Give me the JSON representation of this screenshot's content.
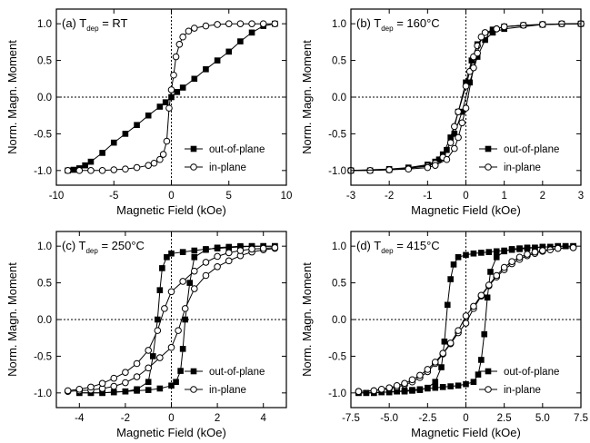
{
  "chart_data": [
    {
      "type": "scatter",
      "title": "(a) T_dep = RT",
      "title_parts": {
        "prefix": "(a) T",
        "sub": "dep",
        "suffix": " = RT"
      },
      "xlabel": "Magnetic Field (kOe)",
      "ylabel": "Norm. Magn. Moment",
      "xlim": [
        -10,
        10
      ],
      "ylim": [
        -1.2,
        1.2
      ],
      "xticks": [
        -10,
        -5,
        0,
        5,
        10
      ],
      "xticklabels": [
        "-10",
        "-5",
        "0",
        "5",
        "10"
      ],
      "yticks": [
        -1.0,
        -0.5,
        0.0,
        0.5,
        1.0
      ],
      "yticklabels": [
        "-1.0",
        "-0.5",
        "0.0",
        "0.5",
        "1.0"
      ],
      "legend_position": "bottom-right",
      "series": [
        {
          "name": "out-of-plane",
          "marker": "filled-square",
          "branches": [
            {
              "x": [
                -9,
                -8.5,
                -8,
                -7.5,
                -7,
                -6,
                -5,
                -4,
                -3,
                -2,
                -1,
                -0.5,
                0,
                0.5,
                1,
                2,
                3,
                4,
                5,
                6,
                7,
                8,
                9
              ],
              "y": [
                -1.0,
                -0.99,
                -0.97,
                -0.93,
                -0.88,
                -0.76,
                -0.62,
                -0.5,
                -0.38,
                -0.25,
                -0.13,
                -0.07,
                0.0,
                0.07,
                0.13,
                0.25,
                0.38,
                0.5,
                0.62,
                0.76,
                0.88,
                0.97,
                1.0
              ]
            }
          ]
        },
        {
          "name": "in-plane",
          "marker": "open-circle",
          "branches": [
            {
              "x": [
                -9,
                -8,
                -7,
                -6,
                -5,
                -4,
                -3,
                -2,
                -1.5,
                -1,
                -0.7,
                -0.4,
                -0.2,
                0,
                0.2,
                0.4,
                0.7,
                1,
                1.5,
                2,
                3,
                4,
                5,
                6,
                7,
                8,
                9
              ],
              "y": [
                -1.0,
                -1.0,
                -1.0,
                -1.0,
                -0.99,
                -0.98,
                -0.96,
                -0.93,
                -0.9,
                -0.85,
                -0.78,
                -0.6,
                -0.15,
                0.1,
                0.3,
                0.55,
                0.72,
                0.82,
                0.9,
                0.94,
                0.97,
                0.99,
                1.0,
                1.0,
                1.0,
                1.0,
                1.0
              ]
            }
          ]
        }
      ]
    },
    {
      "type": "scatter",
      "title": "(b) T_dep = 160°C",
      "title_parts": {
        "prefix": "(b) T",
        "sub": "dep",
        "suffix": " = 160°C"
      },
      "xlabel": "Magnetic Field (kOe)",
      "ylabel": "Norm. Magn. Moment",
      "xlim": [
        -3,
        3
      ],
      "ylim": [
        -1.2,
        1.2
      ],
      "xticks": [
        -3,
        -2,
        -1,
        0,
        1,
        2,
        3
      ],
      "xticklabels": [
        "-3",
        "-2",
        "-1",
        "0",
        "1",
        "2",
        "3"
      ],
      "yticks": [
        -1.0,
        -0.5,
        0.0,
        0.5,
        1.0
      ],
      "yticklabels": [
        "-1.0",
        "-0.5",
        "0.0",
        "0.5",
        "1.0"
      ],
      "legend_position": "bottom-right",
      "series": [
        {
          "name": "out-of-plane",
          "marker": "filled-square",
          "branches": [
            {
              "x": [
                -3,
                -2.5,
                -2,
                -1.5,
                -1,
                -0.8,
                -0.6,
                -0.4,
                -0.2,
                0,
                0.15,
                0.3,
                0.5,
                0.7,
                1,
                1.5,
                2,
                2.5,
                3
              ],
              "y": [
                -1.0,
                -1.0,
                -0.99,
                -0.97,
                -0.93,
                -0.88,
                -0.78,
                -0.55,
                -0.2,
                0.2,
                0.5,
                0.72,
                0.85,
                0.92,
                0.96,
                0.98,
                0.99,
                1.0,
                1.0
              ]
            },
            {
              "x": [
                3,
                2,
                1,
                0.7,
                0.5,
                0.3,
                0.1,
                -0.1,
                -0.3,
                -0.5,
                -0.7,
                -1,
                -1.5,
                -2,
                -3
              ],
              "y": [
                1.0,
                0.99,
                0.93,
                0.88,
                0.78,
                0.55,
                0.2,
                -0.2,
                -0.5,
                -0.72,
                -0.85,
                -0.92,
                -0.96,
                -0.98,
                -1.0
              ]
            }
          ]
        },
        {
          "name": "in-plane",
          "marker": "open-circle",
          "branches": [
            {
              "x": [
                -3,
                -2.5,
                -2,
                -1.5,
                -1,
                -0.8,
                -0.6,
                -0.4,
                -0.3,
                -0.2,
                0,
                0.1,
                0.2,
                0.3,
                0.5,
                0.8,
                1,
                1.5,
                2,
                2.5,
                3
              ],
              "y": [
                -1.0,
                -1.0,
                -0.99,
                -0.97,
                -0.94,
                -0.9,
                -0.82,
                -0.62,
                -0.4,
                -0.2,
                0.15,
                0.35,
                0.55,
                0.7,
                0.85,
                0.93,
                0.96,
                0.98,
                0.99,
                1.0,
                1.0
              ]
            },
            {
              "x": [
                3,
                2,
                1,
                0.8,
                0.5,
                0.4,
                0.3,
                0.2,
                0,
                -0.1,
                -0.2,
                -0.3,
                -0.5,
                -0.8,
                -1,
                -1.5,
                -2,
                -3
              ],
              "y": [
                1.0,
                0.99,
                0.96,
                0.93,
                0.88,
                0.82,
                0.6,
                0.4,
                -0.15,
                -0.35,
                -0.55,
                -0.7,
                -0.85,
                -0.93,
                -0.96,
                -0.98,
                -0.99,
                -1.0
              ]
            }
          ]
        }
      ]
    },
    {
      "type": "scatter",
      "title": "(c) T_dep = 250°C",
      "title_parts": {
        "prefix": "(c) T",
        "sub": "dep",
        "suffix": " = 250°C"
      },
      "xlabel": "Magnetic Field (kOe)",
      "ylabel": "Norm. Magn. Moment",
      "xlim": [
        -5,
        5
      ],
      "ylim": [
        -1.2,
        1.2
      ],
      "xticks": [
        -4,
        -2,
        0,
        2,
        4
      ],
      "xticklabels": [
        "-4",
        "-2",
        "0",
        "2",
        "4"
      ],
      "yticks": [
        -1.0,
        -0.5,
        0.0,
        0.5,
        1.0
      ],
      "yticklabels": [
        "-1.0",
        "-0.5",
        "0.0",
        "0.5",
        "1.0"
      ],
      "legend_position": "bottom-right",
      "series": [
        {
          "name": "out-of-plane",
          "marker": "filled-square",
          "branches": [
            {
              "x": [
                -4,
                -3.5,
                -3,
                -2.5,
                -2,
                -1.5,
                -1,
                -0.5,
                0,
                0.2,
                0.4,
                0.5,
                0.6,
                0.8,
                1.0,
                1.5,
                2,
                2.5,
                3,
                3.5,
                4,
                4.5
              ],
              "y": [
                -1.0,
                -1.0,
                -1.0,
                -0.99,
                -0.98,
                -0.97,
                -0.96,
                -0.94,
                -0.9,
                -0.85,
                -0.7,
                -0.4,
                0.0,
                0.5,
                0.85,
                0.95,
                0.98,
                0.99,
                1.0,
                1.0,
                1.0,
                1.0
              ]
            },
            {
              "x": [
                4.5,
                4,
                3.5,
                3,
                2.5,
                2,
                1.5,
                1,
                0.5,
                0,
                -0.2,
                -0.4,
                -0.5,
                -0.6,
                -0.8,
                -1.0,
                -1.5,
                -2,
                -2.5,
                -3,
                -3.5,
                -4
              ],
              "y": [
                1.0,
                1.0,
                1.0,
                0.99,
                0.98,
                0.97,
                0.96,
                0.94,
                0.92,
                0.9,
                0.85,
                0.7,
                0.4,
                0.0,
                -0.5,
                -0.85,
                -0.95,
                -0.98,
                -0.99,
                -1.0,
                -1.0,
                -1.0
              ]
            }
          ]
        },
        {
          "name": "in-plane",
          "marker": "open-circle",
          "branches": [
            {
              "x": [
                -4.5,
                -4,
                -3.5,
                -3,
                -2.5,
                -2,
                -1.5,
                -1,
                -0.5,
                0,
                0.3,
                0.6,
                1,
                1.5,
                2,
                2.5,
                3,
                3.5,
                4,
                4.5
              ],
              "y": [
                -0.98,
                -0.97,
                -0.96,
                -0.94,
                -0.91,
                -0.86,
                -0.78,
                -0.66,
                -0.52,
                -0.38,
                -0.15,
                0.15,
                0.42,
                0.6,
                0.72,
                0.8,
                0.87,
                0.92,
                0.95,
                0.97
              ]
            },
            {
              "x": [
                4.5,
                4,
                3.5,
                3,
                2.5,
                2,
                1.5,
                1,
                0.5,
                0,
                -0.3,
                -0.6,
                -1,
                -1.5,
                -2,
                -2.5,
                -3,
                -3.5,
                -4,
                -4.5
              ],
              "y": [
                0.98,
                0.97,
                0.96,
                0.94,
                0.91,
                0.86,
                0.78,
                0.66,
                0.52,
                0.38,
                0.15,
                -0.15,
                -0.42,
                -0.6,
                -0.72,
                -0.8,
                -0.87,
                -0.92,
                -0.95,
                -0.97
              ]
            }
          ]
        }
      ]
    },
    {
      "type": "scatter",
      "title": "(d) T_dep = 415°C",
      "title_parts": {
        "prefix": "(d) T",
        "sub": "dep",
        "suffix": " = 415°C"
      },
      "xlabel": "Magnetic Field (kOe)",
      "ylabel": "Norm. Magn. Moment",
      "xlim": [
        -7.5,
        7.5
      ],
      "ylim": [
        -1.2,
        1.2
      ],
      "xticks": [
        -7.5,
        -5,
        -2.5,
        0,
        2.5,
        5,
        7.5
      ],
      "xticklabels": [
        "-7.5",
        "-5.0",
        "-2.5",
        "0",
        "2.5",
        "5.0",
        "7.5"
      ],
      "yticks": [
        -1.0,
        -0.5,
        0.0,
        0.5,
        1.0
      ],
      "yticklabels": [
        "-1.0",
        "-0.5",
        "0.0",
        "0.5",
        "1.0"
      ],
      "legend_position": "bottom-right",
      "series": [
        {
          "name": "out-of-plane",
          "marker": "filled-square",
          "branches": [
            {
              "x": [
                -7,
                -6.5,
                -6,
                -5.5,
                -5,
                -4.5,
                -4,
                -3.5,
                -3,
                -2.5,
                -2,
                -1.5,
                -1,
                -0.5,
                0,
                0.5,
                0.8,
                1.0,
                1.2,
                1.4,
                1.6,
                2.0,
                2.5,
                3,
                3.5,
                4,
                4.5,
                5,
                5.5,
                6,
                6.5,
                7
              ],
              "y": [
                -1.0,
                -1.0,
                -1.0,
                -0.99,
                -0.99,
                -0.98,
                -0.97,
                -0.96,
                -0.95,
                -0.94,
                -0.93,
                -0.92,
                -0.91,
                -0.9,
                -0.88,
                -0.85,
                -0.75,
                -0.55,
                -0.2,
                0.3,
                0.65,
                0.85,
                0.93,
                0.96,
                0.97,
                0.98,
                0.98,
                0.99,
                0.99,
                1.0,
                1.0,
                1.0
              ]
            },
            {
              "x": [
                7,
                6.5,
                6,
                5.5,
                5,
                4.5,
                4,
                3.5,
                3,
                2.5,
                2,
                1.5,
                1,
                0.5,
                0,
                -0.5,
                -0.8,
                -1.0,
                -1.2,
                -1.4,
                -1.6,
                -2.0,
                -2.5,
                -3,
                -3.5,
                -4,
                -4.5,
                -5,
                -5.5,
                -6,
                -6.5,
                -7
              ],
              "y": [
                1.0,
                1.0,
                1.0,
                0.99,
                0.99,
                0.98,
                0.97,
                0.96,
                0.95,
                0.94,
                0.93,
                0.92,
                0.91,
                0.9,
                0.88,
                0.85,
                0.75,
                0.55,
                0.2,
                -0.3,
                -0.65,
                -0.85,
                -0.93,
                -0.96,
                -0.97,
                -0.98,
                -0.98,
                -0.99,
                -0.99,
                -1.0,
                -1.0,
                -1.0
              ]
            }
          ]
        },
        {
          "name": "in-plane",
          "marker": "open-circle",
          "branches": [
            {
              "x": [
                -7,
                -6,
                -5,
                -4.5,
                -4,
                -3.5,
                -3,
                -2.5,
                -2,
                -1.5,
                -1,
                -0.5,
                0,
                0.5,
                1,
                1.5,
                2,
                2.5,
                3,
                3.5,
                4,
                4.5,
                5,
                5.5,
                6,
                7
              ],
              "y": [
                -0.98,
                -0.97,
                -0.94,
                -0.92,
                -0.89,
                -0.85,
                -0.79,
                -0.71,
                -0.6,
                -0.47,
                -0.33,
                -0.18,
                -0.05,
                0.15,
                0.32,
                0.46,
                0.58,
                0.68,
                0.76,
                0.82,
                0.87,
                0.9,
                0.93,
                0.95,
                0.97,
                0.98
              ]
            },
            {
              "x": [
                7,
                6,
                5,
                4.5,
                4,
                3.5,
                3,
                2.5,
                2,
                1.5,
                1,
                0.5,
                0,
                -0.5,
                -1,
                -1.5,
                -2,
                -2.5,
                -3,
                -3.5,
                -4,
                -4.5,
                -5,
                -5.5,
                -6,
                -7
              ],
              "y": [
                0.98,
                0.97,
                0.94,
                0.92,
                0.89,
                0.85,
                0.79,
                0.71,
                0.6,
                0.47,
                0.33,
                0.18,
                0.05,
                -0.15,
                -0.32,
                -0.46,
                -0.58,
                -0.68,
                -0.76,
                -0.82,
                -0.87,
                -0.9,
                -0.93,
                -0.95,
                -0.97,
                -0.98
              ]
            }
          ]
        }
      ]
    }
  ]
}
